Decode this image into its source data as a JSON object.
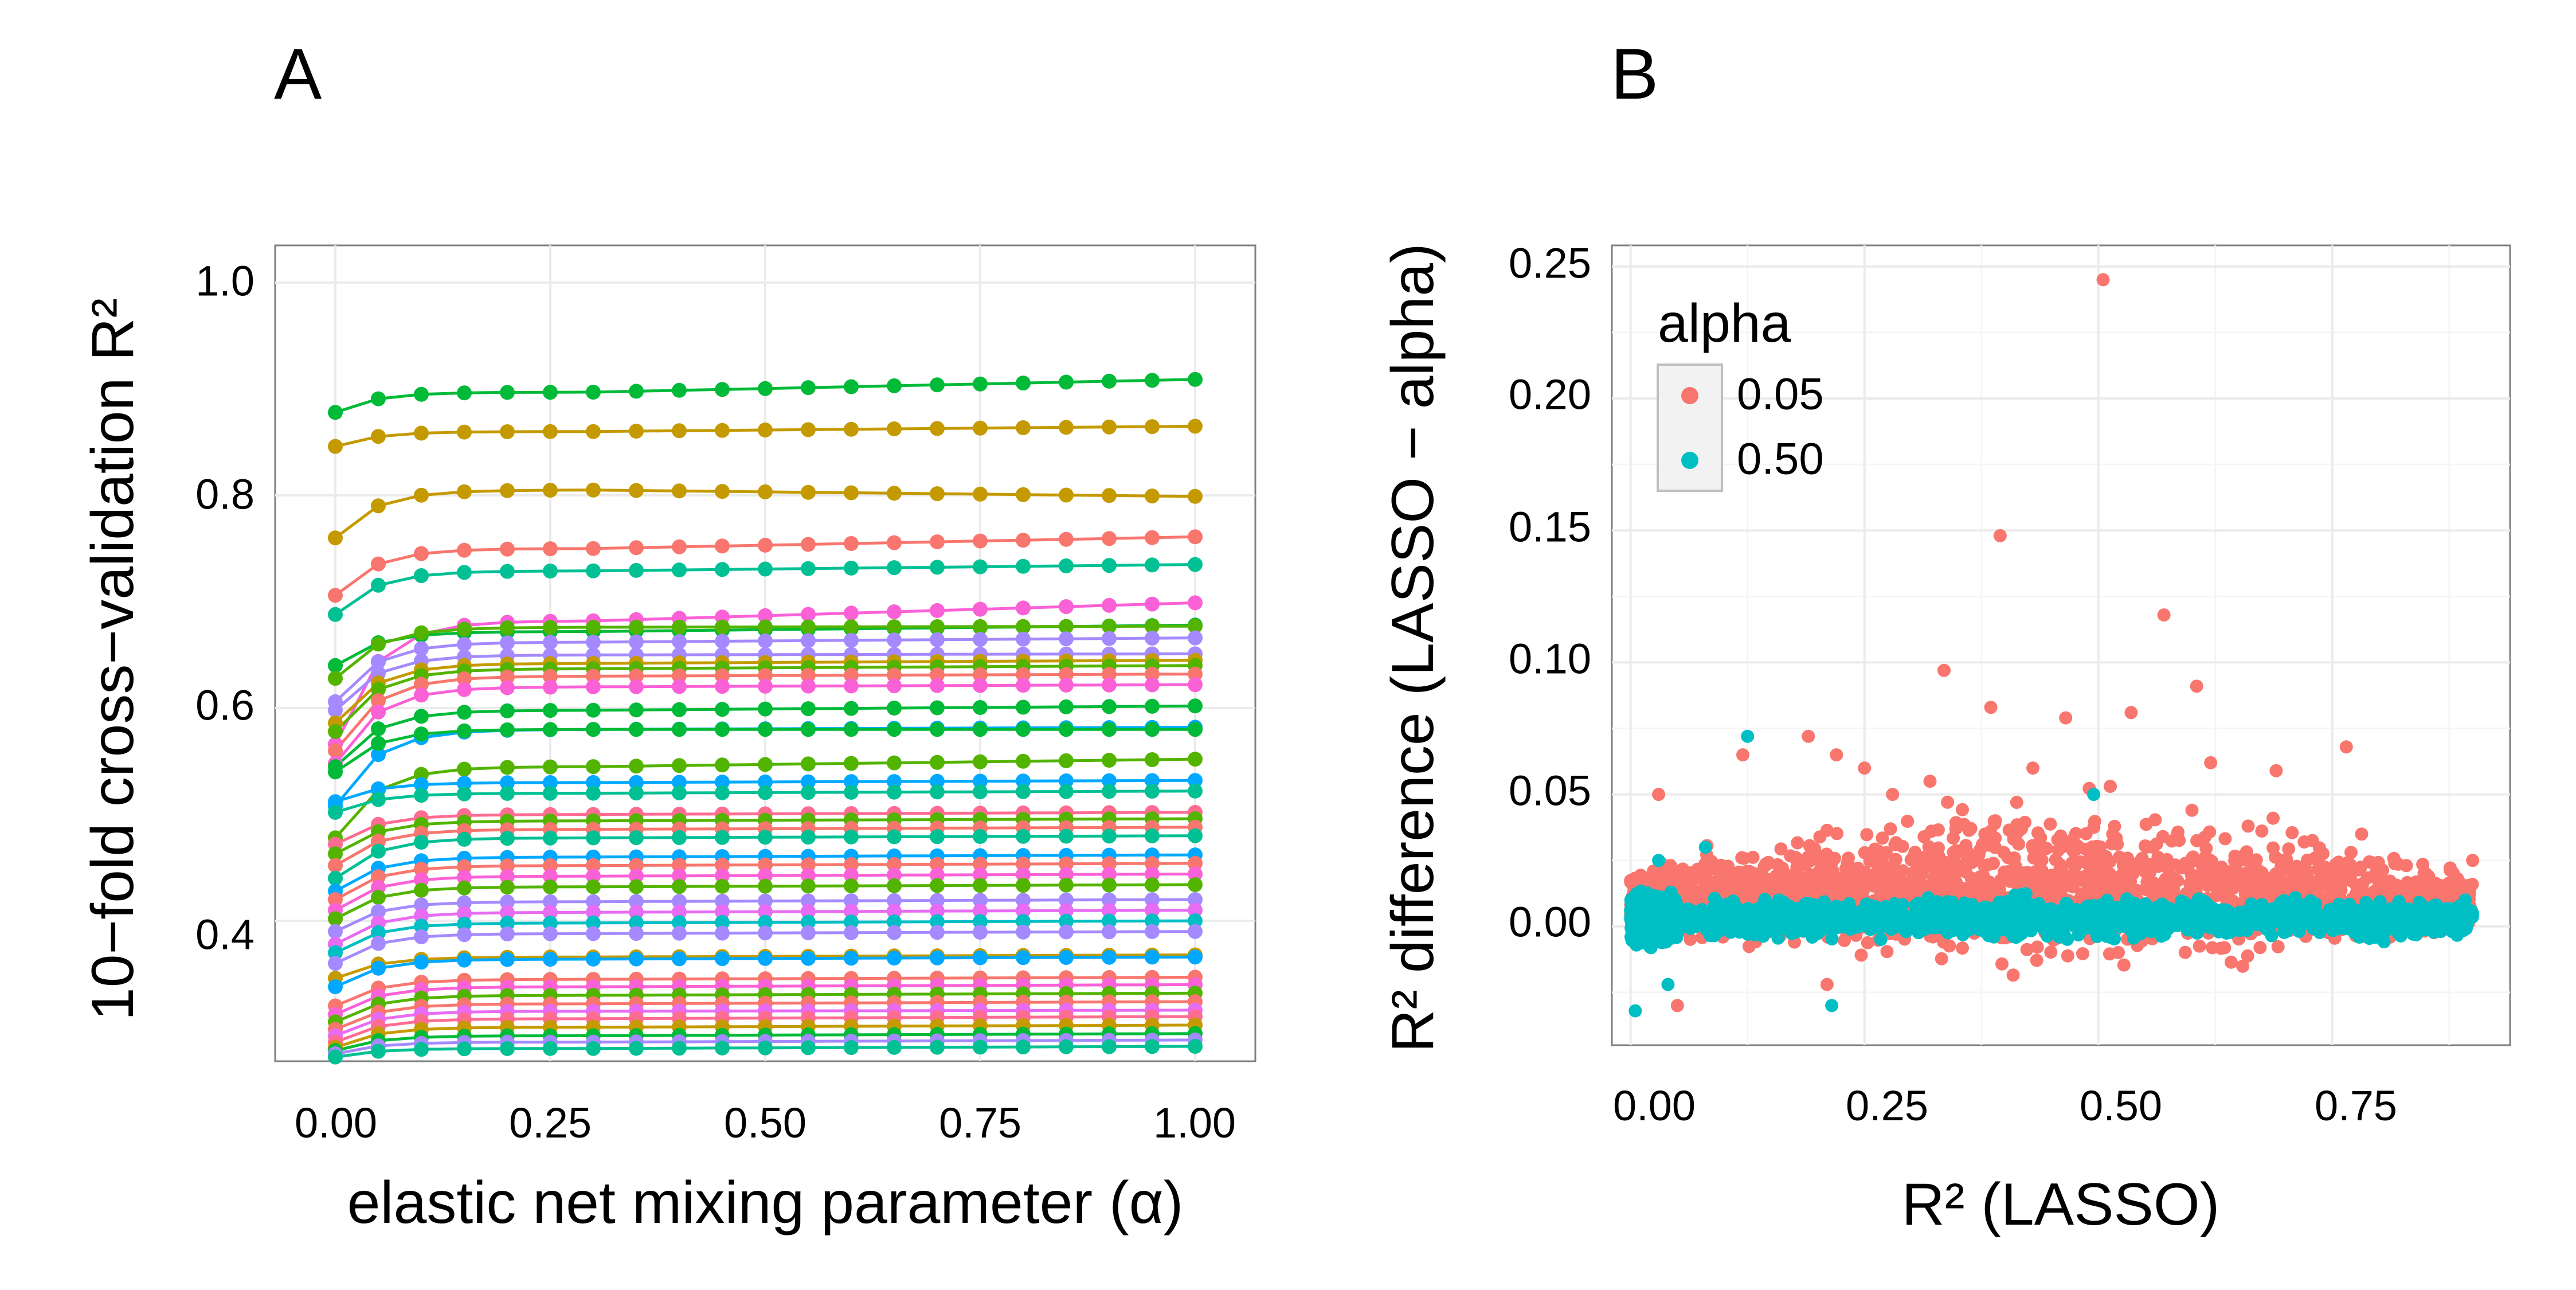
{
  "chart_data": [
    {
      "panel_label": "A",
      "type": "line",
      "xlabel": "elastic net mixing parameter (α)",
      "ylabel": "10−fold cross−validation R²",
      "xlim": [
        -0.07,
        1.07
      ],
      "ylim": [
        0.268,
        1.035
      ],
      "xticks": [
        "0.00",
        "0.25",
        "0.50",
        "0.75",
        "1.00"
      ],
      "yticks": [
        "0.4",
        "0.6",
        "0.8",
        "1.0"
      ],
      "grid": true,
      "x": [
        0.0,
        0.05,
        0.1,
        0.15,
        0.2,
        0.25,
        0.3,
        0.35,
        0.4,
        0.45,
        0.5,
        0.55,
        0.6,
        0.65,
        0.7,
        0.75,
        0.8,
        0.85,
        0.9,
        0.95,
        1.0
      ],
      "series": [
        {
          "color": "#00BA38",
          "start": 0.878,
          "plateau": 0.897,
          "end": 0.909
        },
        {
          "color": "#C49A00",
          "start": 0.846,
          "plateau": 0.86,
          "end": 0.865
        },
        {
          "color": "#C49A00",
          "start": 0.76,
          "plateau": 0.805,
          "end": 0.799
        },
        {
          "color": "#F8766D",
          "start": 0.706,
          "plateau": 0.75,
          "end": 0.761
        },
        {
          "color": "#00C094",
          "start": 0.688,
          "plateau": 0.729,
          "end": 0.735
        },
        {
          "color": "#FB61D7",
          "start": 0.566,
          "plateau": 0.682,
          "end": 0.699
        },
        {
          "color": "#00BA38",
          "start": 0.64,
          "plateau": 0.672,
          "end": 0.678
        },
        {
          "color": "#53B400",
          "start": 0.628,
          "plateau": 0.676,
          "end": 0.677
        },
        {
          "color": "#A58AFF",
          "start": 0.606,
          "plateau": 0.662,
          "end": 0.666
        },
        {
          "color": "#A58AFF",
          "start": 0.598,
          "plateau": 0.65,
          "end": 0.651
        },
        {
          "color": "#C49A00",
          "start": 0.586,
          "plateau": 0.642,
          "end": 0.645
        },
        {
          "color": "#53B400",
          "start": 0.578,
          "plateau": 0.637,
          "end": 0.64
        },
        {
          "color": "#F8766D",
          "start": 0.56,
          "plateau": 0.63,
          "end": 0.632
        },
        {
          "color": "#FB61D7",
          "start": 0.548,
          "plateau": 0.62,
          "end": 0.622
        },
        {
          "color": "#00BA38",
          "start": 0.545,
          "plateau": 0.598,
          "end": 0.602
        },
        {
          "color": "#00A9FF",
          "start": 0.508,
          "plateau": 0.58,
          "end": 0.582
        },
        {
          "color": "#00BA38",
          "start": 0.54,
          "plateau": 0.58,
          "end": 0.58
        },
        {
          "color": "#53B400",
          "start": 0.478,
          "plateau": 0.545,
          "end": 0.552
        },
        {
          "color": "#00A9FF",
          "start": 0.512,
          "plateau": 0.53,
          "end": 0.532
        },
        {
          "color": "#00C094",
          "start": 0.502,
          "plateau": 0.52,
          "end": 0.522
        },
        {
          "color": "#FF6C91",
          "start": 0.472,
          "plateau": 0.5,
          "end": 0.502
        },
        {
          "color": "#53B400",
          "start": 0.463,
          "plateau": 0.494,
          "end": 0.496
        },
        {
          "color": "#F8766D",
          "start": 0.452,
          "plateau": 0.486,
          "end": 0.488
        },
        {
          "color": "#00C094",
          "start": 0.44,
          "plateau": 0.478,
          "end": 0.48
        },
        {
          "color": "#00A9FF",
          "start": 0.428,
          "plateau": 0.46,
          "end": 0.462
        },
        {
          "color": "#F8766D",
          "start": 0.42,
          "plateau": 0.452,
          "end": 0.454
        },
        {
          "color": "#FB61D7",
          "start": 0.41,
          "plateau": 0.442,
          "end": 0.444
        },
        {
          "color": "#53B400",
          "start": 0.402,
          "plateau": 0.432,
          "end": 0.434
        },
        {
          "color": "#A58AFF",
          "start": 0.39,
          "plateau": 0.418,
          "end": 0.42
        },
        {
          "color": "#E76BF3",
          "start": 0.378,
          "plateau": 0.408,
          "end": 0.41
        },
        {
          "color": "#00BFC4",
          "start": 0.37,
          "plateau": 0.398,
          "end": 0.4
        },
        {
          "color": "#A58AFF",
          "start": 0.36,
          "plateau": 0.388,
          "end": 0.39
        },
        {
          "color": "#C49A00",
          "start": 0.346,
          "plateau": 0.366,
          "end": 0.368
        },
        {
          "color": "#00A9FF",
          "start": 0.338,
          "plateau": 0.364,
          "end": 0.366
        },
        {
          "color": "#F8766D",
          "start": 0.32,
          "plateau": 0.345,
          "end": 0.347
        },
        {
          "color": "#FB61D7",
          "start": 0.312,
          "plateau": 0.338,
          "end": 0.34
        },
        {
          "color": "#53B400",
          "start": 0.305,
          "plateau": 0.33,
          "end": 0.332
        },
        {
          "color": "#F8766D",
          "start": 0.298,
          "plateau": 0.322,
          "end": 0.324
        },
        {
          "color": "#E76BF3",
          "start": 0.292,
          "plateau": 0.315,
          "end": 0.316
        },
        {
          "color": "#FF6C91",
          "start": 0.286,
          "plateau": 0.308,
          "end": 0.31
        },
        {
          "color": "#C49A00",
          "start": 0.281,
          "plateau": 0.3,
          "end": 0.302
        },
        {
          "color": "#00BA38",
          "start": 0.278,
          "plateau": 0.292,
          "end": 0.294
        },
        {
          "color": "#A58AFF",
          "start": 0.275,
          "plateau": 0.286,
          "end": 0.288
        },
        {
          "color": "#00C094",
          "start": 0.272,
          "plateau": 0.28,
          "end": 0.282
        }
      ]
    },
    {
      "panel_label": "B",
      "type": "scatter",
      "xlabel": "R² (LASSO)",
      "ylabel": "R² difference (LASSO − alpha)",
      "xlim": [
        -0.02,
        0.94
      ],
      "ylim": [
        -0.045,
        0.258
      ],
      "xticks": [
        "0.00",
        "0.25",
        "0.50",
        "0.75"
      ],
      "yticks": [
        "0.00",
        "0.05",
        "0.10",
        "0.15",
        "0.20",
        "0.25"
      ],
      "grid": true,
      "legend": {
        "title": "alpha",
        "position": "top-left",
        "entries": [
          {
            "label": "0.05",
            "color": "#F8766D"
          },
          {
            "label": "0.50",
            "color": "#00BFC4"
          }
        ]
      },
      "series": [
        {
          "name": "0.05",
          "color": "#F8766D",
          "points": [
            [
              0.505,
              0.245
            ],
            [
              0.395,
              0.148
            ],
            [
              0.57,
              0.118
            ],
            [
              0.335,
              0.097
            ],
            [
              0.605,
              0.091
            ],
            [
              0.385,
              0.083
            ],
            [
              0.535,
              0.081
            ],
            [
              0.465,
              0.079
            ],
            [
              0.765,
              0.068
            ],
            [
              0.12,
              0.065
            ],
            [
              0.19,
              0.072
            ],
            [
              0.22,
              0.065
            ],
            [
              0.25,
              0.06
            ],
            [
              0.43,
              0.06
            ],
            [
              0.62,
              0.062
            ],
            [
              0.69,
              0.059
            ],
            [
              0.03,
              0.05
            ],
            [
              0.05,
              -0.03
            ],
            [
              0.21,
              -0.022
            ],
            [
              0.9,
              0.025
            ],
            [
              0.85,
              0.02
            ],
            [
              0.8,
              0.015
            ],
            [
              0.77,
              0.028
            ],
            [
              0.72,
              0.032
            ],
            [
              0.66,
              0.038
            ],
            [
              0.6,
              0.044
            ],
            [
              0.32,
              0.055
            ],
            [
              0.28,
              0.05
            ]
          ]
        },
        {
          "name": "0.50",
          "color": "#00BFC4",
          "points": [
            [
              0.125,
              0.072
            ],
            [
              0.495,
              0.05
            ],
            [
              0.005,
              -0.032
            ],
            [
              0.215,
              -0.03
            ],
            [
              0.04,
              -0.022
            ],
            [
              0.03,
              0.025
            ],
            [
              0.08,
              0.03
            ]
          ]
        }
      ]
    }
  ]
}
